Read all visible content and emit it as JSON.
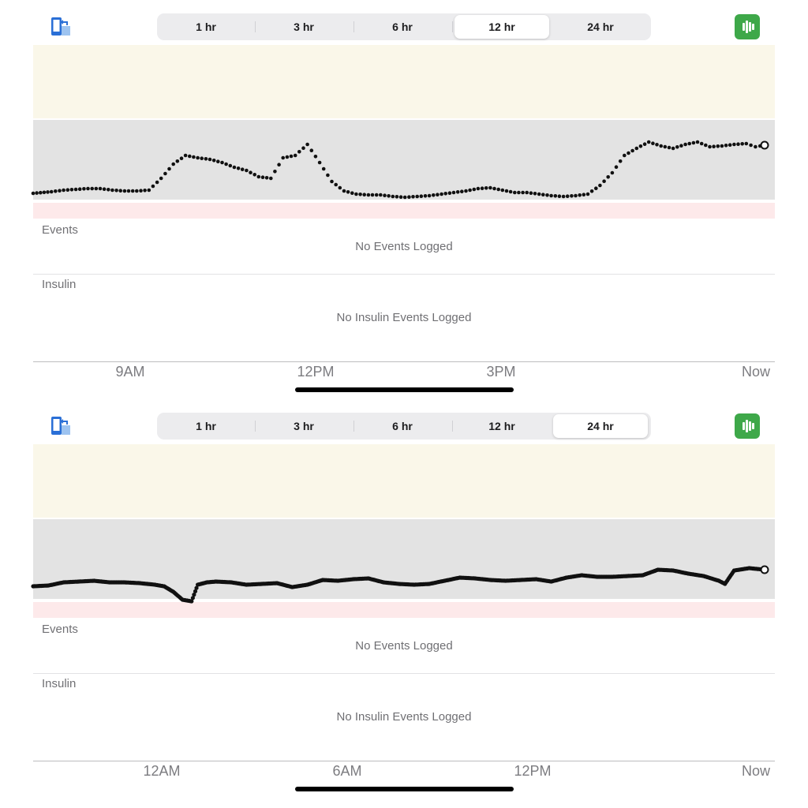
{
  "panels": [
    {
      "segments": [
        "1 hr",
        "3 hr",
        "6 hr",
        "12 hr",
        "24 hr"
      ],
      "selected_segment": "12 hr",
      "events_label": "Events",
      "events_empty": "No Events Logged",
      "insulin_label": "Insulin",
      "insulin_empty": "No Insulin Events Logged",
      "x_ticks": [
        "9AM",
        "12PM",
        "3PM",
        "Now"
      ],
      "zone_colors": {
        "high": "#faf7e9",
        "in_range": "#e3e3e3",
        "low": "#fde9ea"
      },
      "chart_data": {
        "type": "scatter",
        "title": "",
        "xlabel": "",
        "ylabel": "",
        "x_unit": "hours before now",
        "xlim": [
          -12,
          0
        ],
        "ylim": [
          0,
          1
        ],
        "y_unit": "relative level",
        "series": [
          {
            "x": [
              -12.0,
              -11.7,
              -11.5,
              -11.3,
              -11.1,
              -10.9,
              -10.7,
              -10.5,
              -10.3,
              -10.1,
              -9.9,
              -9.7,
              -9.5,
              -9.3,
              -9.1,
              -8.9,
              -8.7,
              -8.5,
              -8.3,
              -8.1,
              -7.9,
              -7.7,
              -7.5,
              -7.3,
              -7.1,
              -6.9,
              -6.7,
              -6.5,
              -6.3,
              -6.1,
              -5.9,
              -5.7,
              -5.5,
              -5.3,
              -5.1,
              -4.9,
              -4.7,
              -4.5,
              -4.3,
              -4.1,
              -3.9,
              -3.7,
              -3.5,
              -3.3,
              -3.1,
              -2.9,
              -2.7,
              -2.5,
              -2.3,
              -2.1,
              -1.9,
              -1.7,
              -1.5,
              -1.3,
              -1.1,
              -0.9,
              -0.7,
              -0.5,
              -0.3,
              -0.15,
              0.0
            ],
            "y": [
              0.07,
              0.09,
              0.11,
              0.12,
              0.13,
              0.13,
              0.11,
              0.1,
              0.1,
              0.11,
              0.26,
              0.44,
              0.55,
              0.52,
              0.5,
              0.46,
              0.4,
              0.36,
              0.28,
              0.26,
              0.52,
              0.55,
              0.69,
              0.46,
              0.22,
              0.1,
              0.06,
              0.05,
              0.05,
              0.03,
              0.02,
              0.03,
              0.04,
              0.06,
              0.08,
              0.1,
              0.13,
              0.14,
              0.11,
              0.08,
              0.08,
              0.06,
              0.04,
              0.03,
              0.04,
              0.06,
              0.17,
              0.33,
              0.55,
              0.64,
              0.72,
              0.67,
              0.64,
              0.69,
              0.72,
              0.66,
              0.67,
              0.69,
              0.7,
              0.66,
              0.68
            ]
          }
        ]
      }
    },
    {
      "segments": [
        "1 hr",
        "3 hr",
        "6 hr",
        "12 hr",
        "24 hr"
      ],
      "selected_segment": "24 hr",
      "events_label": "Events",
      "events_empty": "No Events Logged",
      "insulin_label": "Insulin",
      "insulin_empty": "No Insulin Events Logged",
      "x_ticks": [
        "12AM",
        "6AM",
        "12PM",
        "Now"
      ],
      "zone_colors": {
        "high": "#faf7e9",
        "in_range": "#e3e3e3",
        "low": "#fde9ea"
      },
      "chart_data": {
        "type": "scatter",
        "title": "",
        "xlabel": "",
        "ylabel": "",
        "x_unit": "hours before now",
        "xlim": [
          -24,
          0
        ],
        "ylim": [
          0,
          1
        ],
        "y_unit": "relative level",
        "series": [
          {
            "x": [
              -24.0,
              -23.5,
              -23.0,
              -22.5,
              -22.0,
              -21.5,
              -21.0,
              -20.5,
              -20.0,
              -19.7,
              -19.4,
              -19.1,
              -18.8,
              -18.6,
              -18.3,
              -18.0,
              -17.5,
              -17.0,
              -16.5,
              -16.0,
              -15.5,
              -15.0,
              -14.5,
              -14.0,
              -13.5,
              -13.0,
              -12.5,
              -12.0,
              -11.5,
              -11.0,
              -10.5,
              -10.0,
              -9.5,
              -9.0,
              -8.5,
              -8.0,
              -7.5,
              -7.0,
              -6.5,
              -6.0,
              -5.5,
              -5.0,
              -4.5,
              -4.0,
              -3.5,
              -3.0,
              -2.5,
              -2.0,
              -1.5,
              -1.3,
              -1.0,
              -0.5,
              0.0
            ],
            "y": [
              0.15,
              0.16,
              0.2,
              0.21,
              0.22,
              0.2,
              0.2,
              0.19,
              0.17,
              0.15,
              0.08,
              -0.02,
              -0.04,
              0.17,
              0.2,
              0.21,
              0.2,
              0.17,
              0.18,
              0.19,
              0.14,
              0.17,
              0.23,
              0.22,
              0.24,
              0.25,
              0.2,
              0.18,
              0.17,
              0.18,
              0.22,
              0.26,
              0.25,
              0.23,
              0.22,
              0.23,
              0.24,
              0.21,
              0.26,
              0.29,
              0.27,
              0.27,
              0.28,
              0.29,
              0.36,
              0.35,
              0.31,
              0.28,
              0.22,
              0.18,
              0.35,
              0.38,
              0.36
            ]
          }
        ]
      }
    }
  ]
}
